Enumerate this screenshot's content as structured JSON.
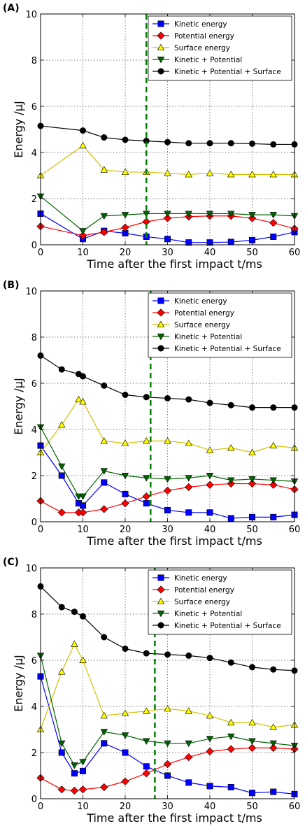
{
  "chart_data": [
    {
      "type": "line",
      "panel_label": "(A)",
      "xlabel": "Time after the first impact t/ms",
      "ylabel": "Energy /μJ",
      "xlim": [
        0,
        60
      ],
      "ylim": [
        0,
        10
      ],
      "xticks": [
        0,
        10,
        20,
        30,
        40,
        50,
        60
      ],
      "yticks": [
        0,
        2,
        4,
        6,
        8,
        10
      ],
      "grid": true,
      "legend": "top-right",
      "vline_x": 25,
      "x": [
        0,
        10,
        15,
        20,
        25,
        30,
        35,
        40,
        45,
        50,
        55,
        60
      ],
      "series": [
        {
          "name": "Kinetic energy",
          "color": "#0000ff",
          "marker": "square",
          "values": [
            1.35,
            0.25,
            0.6,
            0.5,
            0.35,
            0.25,
            0.1,
            0.1,
            0.12,
            0.2,
            0.35,
            0.55
          ]
        },
        {
          "name": "Potential energy",
          "color": "#ff0000",
          "marker": "diamond",
          "values": [
            0.8,
            0.4,
            0.55,
            0.75,
            1.0,
            1.15,
            1.22,
            1.25,
            1.25,
            1.15,
            0.95,
            0.7
          ]
        },
        {
          "name": "Surface energy",
          "color": "#ffff00",
          "marker": "triangle-up",
          "values": [
            3.0,
            4.3,
            3.25,
            3.15,
            3.15,
            3.1,
            3.05,
            3.1,
            3.05,
            3.05,
            3.05,
            3.05
          ]
        },
        {
          "name": "Kinetic + Potential",
          "color": "#006400",
          "marker": "triangle-down",
          "values": [
            2.1,
            0.6,
            1.25,
            1.3,
            1.35,
            1.35,
            1.35,
            1.35,
            1.35,
            1.3,
            1.3,
            1.25
          ]
        },
        {
          "name": "Kinetic + Potential + Surface",
          "color": "#000000",
          "marker": "circle",
          "values": [
            5.15,
            4.95,
            4.65,
            4.55,
            4.5,
            4.45,
            4.4,
            4.4,
            4.4,
            4.38,
            4.35,
            4.35
          ]
        }
      ]
    },
    {
      "type": "line",
      "panel_label": "(B)",
      "xlabel": "Time after the first impact t/ms",
      "ylabel": "Energy /μJ",
      "xlim": [
        0,
        60
      ],
      "ylim": [
        0,
        10
      ],
      "xticks": [
        0,
        10,
        20,
        30,
        40,
        50,
        60
      ],
      "yticks": [
        0,
        2,
        4,
        6,
        8,
        10
      ],
      "grid": true,
      "legend": "top-right",
      "vline_x": 26,
      "x": [
        0,
        5,
        9,
        10,
        15,
        20,
        25,
        30,
        35,
        40,
        45,
        50,
        55,
        60
      ],
      "series": [
        {
          "name": "Kinetic energy",
          "color": "#0000ff",
          "marker": "square",
          "values": [
            3.3,
            2.0,
            0.8,
            0.7,
            1.7,
            1.2,
            0.8,
            0.5,
            0.4,
            0.4,
            0.15,
            0.2,
            0.2,
            0.3
          ]
        },
        {
          "name": "Potential energy",
          "color": "#ff0000",
          "marker": "diamond",
          "values": [
            0.9,
            0.4,
            0.4,
            0.4,
            0.55,
            0.8,
            1.1,
            1.35,
            1.5,
            1.6,
            1.65,
            1.65,
            1.6,
            1.4
          ]
        },
        {
          "name": "Surface energy",
          "color": "#ffff00",
          "marker": "triangle-up",
          "values": [
            3.0,
            4.2,
            5.3,
            5.2,
            3.5,
            3.4,
            3.5,
            3.5,
            3.4,
            3.1,
            3.2,
            3.0,
            3.3,
            3.2
          ]
        },
        {
          "name": "Kinetic + Potential",
          "color": "#006400",
          "marker": "triangle-down",
          "values": [
            4.1,
            2.4,
            1.1,
            1.1,
            2.2,
            2.0,
            1.9,
            1.85,
            1.9,
            2.0,
            1.8,
            1.85,
            1.8,
            1.75
          ]
        },
        {
          "name": "Kinetic + Potential + Surface",
          "color": "#000000",
          "marker": "circle",
          "values": [
            7.2,
            6.6,
            6.4,
            6.3,
            5.9,
            5.5,
            5.4,
            5.35,
            5.3,
            5.15,
            5.05,
            4.95,
            4.95,
            4.95
          ]
        }
      ]
    },
    {
      "type": "line",
      "panel_label": "(C)",
      "xlabel": "Time after the first impact t/ms",
      "ylabel": "Energy /μJ",
      "xlim": [
        0,
        60
      ],
      "ylim": [
        0,
        10
      ],
      "xticks": [
        0,
        10,
        20,
        30,
        40,
        50,
        60
      ],
      "yticks": [
        0,
        2,
        4,
        6,
        8,
        10
      ],
      "grid": true,
      "legend": "top-right",
      "vline_x": 27,
      "x": [
        0,
        5,
        8,
        10,
        15,
        20,
        25,
        30,
        35,
        40,
        45,
        50,
        55,
        60
      ],
      "series": [
        {
          "name": "Kinetic energy",
          "color": "#0000ff",
          "marker": "square",
          "values": [
            5.3,
            2.0,
            1.1,
            1.2,
            2.4,
            2.0,
            1.4,
            1.0,
            0.7,
            0.55,
            0.5,
            0.25,
            0.3,
            0.2
          ]
        },
        {
          "name": "Potential energy",
          "color": "#ff0000",
          "marker": "diamond",
          "values": [
            0.9,
            0.4,
            0.35,
            0.4,
            0.5,
            0.75,
            1.1,
            1.5,
            1.8,
            2.05,
            2.15,
            2.2,
            2.2,
            2.15
          ]
        },
        {
          "name": "Surface energy",
          "color": "#ffff00",
          "marker": "triangle-up",
          "values": [
            3.0,
            5.5,
            6.7,
            6.0,
            3.6,
            3.7,
            3.8,
            3.9,
            3.8,
            3.6,
            3.3,
            3.3,
            3.1,
            3.2
          ]
        },
        {
          "name": "Kinetic + Potential",
          "color": "#006400",
          "marker": "triangle-down",
          "values": [
            6.2,
            2.4,
            1.45,
            1.6,
            2.9,
            2.75,
            2.5,
            2.4,
            2.4,
            2.6,
            2.7,
            2.5,
            2.4,
            2.3
          ]
        },
        {
          "name": "Kinetic + Potential + Surface",
          "color": "#000000",
          "marker": "circle",
          "values": [
            9.2,
            8.3,
            8.1,
            7.9,
            7.0,
            6.5,
            6.3,
            6.25,
            6.2,
            6.1,
            5.9,
            5.7,
            5.6,
            5.55
          ]
        }
      ]
    }
  ]
}
